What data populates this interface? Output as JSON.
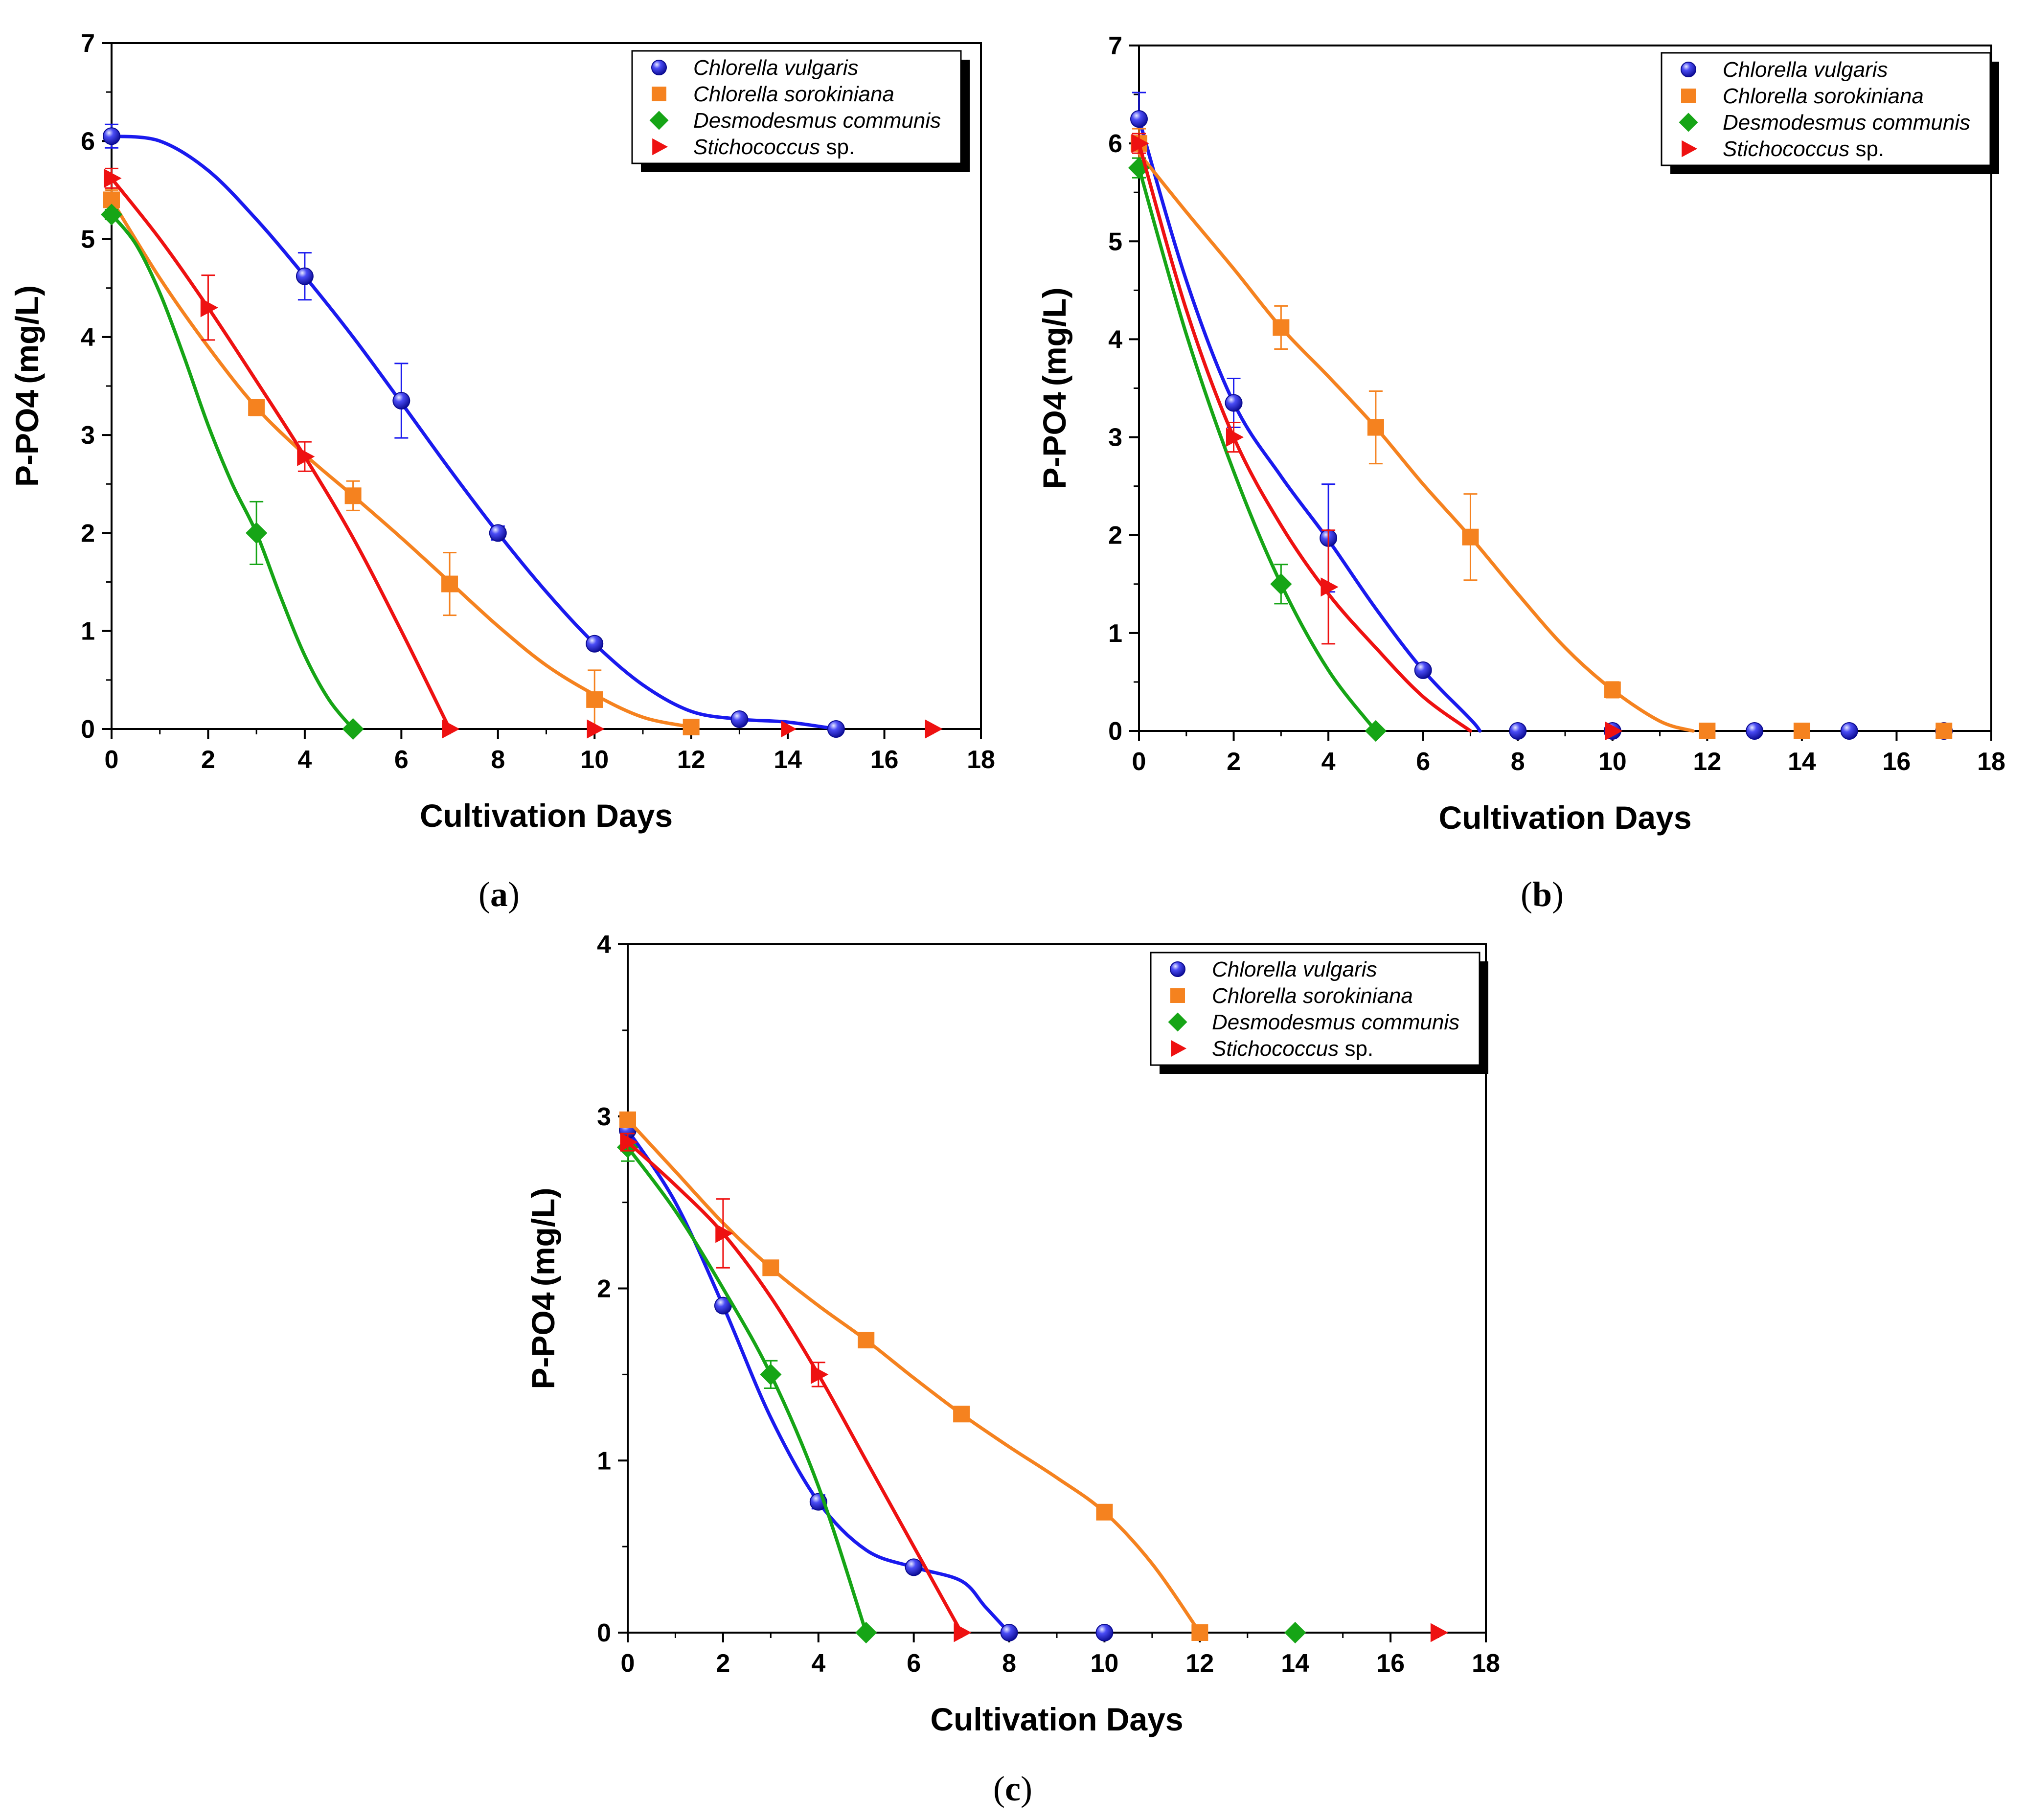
{
  "chart_data": [
    {
      "type": "scatter",
      "panel": "a",
      "xlabel": "Cultivation Days",
      "ylabel": "P-PO4 (mg/L)",
      "xlim": [
        0,
        18
      ],
      "ylim": [
        0,
        7
      ],
      "xticks": [
        0,
        2,
        4,
        6,
        8,
        10,
        12,
        14,
        16,
        18
      ],
      "yticks": [
        0,
        1,
        2,
        3,
        4,
        5,
        6,
        7
      ],
      "legend_position": "top-right",
      "series": [
        {
          "name": "Chlorella vulgaris",
          "name_italic": "Chlorella vulgaris",
          "name_suffix": "",
          "color": "#1a1aee",
          "marker": "sphere",
          "x": [
            0,
            4,
            6,
            8,
            10,
            13,
            15
          ],
          "y": [
            6.05,
            4.62,
            3.35,
            2.0,
            0.87,
            0.1,
            0.0
          ],
          "err": [
            0.12,
            0.24,
            0.38,
            0.07,
            0.04,
            0.02,
            0.0
          ],
          "curve": [
            [
              0,
              6.05
            ],
            [
              1,
              6.0
            ],
            [
              2,
              5.7
            ],
            [
              3,
              5.2
            ],
            [
              4,
              4.62
            ],
            [
              5,
              4.0
            ],
            [
              6,
              3.33
            ],
            [
              7,
              2.65
            ],
            [
              8,
              2.0
            ],
            [
              9,
              1.4
            ],
            [
              10,
              0.87
            ],
            [
              11,
              0.45
            ],
            [
              12,
              0.18
            ],
            [
              13,
              0.1
            ],
            [
              14,
              0.07
            ],
            [
              15,
              0.0
            ]
          ]
        },
        {
          "name": "Chlorella sorokiniana",
          "name_italic": "Chlorella sorokiniana",
          "name_suffix": "",
          "color": "#f5821f",
          "marker": "square",
          "x": [
            0,
            3,
            5,
            7,
            10,
            12
          ],
          "y": [
            5.4,
            3.28,
            2.38,
            1.48,
            0.3,
            0.02
          ],
          "err": [
            0.1,
            0.08,
            0.15,
            0.32,
            0.3,
            0.02
          ],
          "curve": [
            [
              0,
              5.4
            ],
            [
              1,
              4.6
            ],
            [
              2,
              3.9
            ],
            [
              3,
              3.28
            ],
            [
              4,
              2.8
            ],
            [
              5,
              2.38
            ],
            [
              6,
              1.95
            ],
            [
              7,
              1.5
            ],
            [
              8,
              1.05
            ],
            [
              9,
              0.65
            ],
            [
              10,
              0.35
            ],
            [
              11,
              0.12
            ],
            [
              12,
              0.02
            ]
          ]
        },
        {
          "name": "Desmodesmus communis",
          "name_italic": "Desmodesmus communis",
          "name_suffix": "",
          "color": "#16a516",
          "marker": "diamond",
          "x": [
            0,
            3,
            5
          ],
          "y": [
            5.25,
            2.0,
            0.0
          ],
          "err": [
            0.05,
            0.32,
            0.0
          ],
          "curve": [
            [
              0,
              5.25
            ],
            [
              0.5,
              4.95
            ],
            [
              1,
              4.45
            ],
            [
              1.5,
              3.8
            ],
            [
              2,
              3.1
            ],
            [
              2.5,
              2.5
            ],
            [
              3,
              2.0
            ],
            [
              3.5,
              1.35
            ],
            [
              4,
              0.75
            ],
            [
              4.5,
              0.3
            ],
            [
              5,
              0.0
            ]
          ]
        },
        {
          "name": "Stichococcus sp.",
          "name_italic": "Stichococcus",
          "name_suffix": " sp.",
          "color": "#ee1111",
          "marker": "triangle",
          "x": [
            0,
            2,
            4,
            7,
            10,
            17
          ],
          "y": [
            5.62,
            4.3,
            2.78,
            0.0,
            0.0,
            0.0
          ],
          "err": [
            0.1,
            0.33,
            0.15,
            0.0,
            0.0,
            0.0
          ],
          "curve": [
            [
              0,
              5.62
            ],
            [
              1,
              5.0
            ],
            [
              2,
              4.3
            ],
            [
              3,
              3.55
            ],
            [
              4,
              2.78
            ],
            [
              5,
              1.95
            ],
            [
              6,
              1.0
            ],
            [
              7,
              0.0
            ]
          ]
        }
      ],
      "extra_zero_points": [
        [
          14,
          0.0
        ],
        [
          17,
          0.0
        ]
      ]
    },
    {
      "type": "scatter",
      "panel": "b",
      "xlabel": "Cultivation Days",
      "ylabel": "P-PO4 (mg/L)",
      "xlim": [
        0,
        18
      ],
      "ylim": [
        0,
        7
      ],
      "xticks": [
        0,
        2,
        4,
        6,
        8,
        10,
        12,
        14,
        16,
        18
      ],
      "yticks": [
        0,
        1,
        2,
        3,
        4,
        5,
        6,
        7
      ],
      "legend_position": "top-right",
      "series": [
        {
          "name": "Chlorella vulgaris",
          "name_italic": "Chlorella vulgaris",
          "name_suffix": "",
          "color": "#1a1aee",
          "marker": "sphere",
          "x": [
            0,
            2,
            4,
            6,
            8,
            10,
            13,
            15,
            17
          ],
          "y": [
            6.25,
            3.35,
            1.97,
            0.62,
            0.0,
            0.0,
            0.0,
            0.0,
            0.0
          ],
          "err": [
            0.27,
            0.25,
            0.55,
            0.03,
            0.0,
            0.0,
            0.0,
            0.0,
            0.0
          ],
          "curve": [
            [
              0,
              6.25
            ],
            [
              1,
              4.6
            ],
            [
              2,
              3.35
            ],
            [
              3,
              2.6
            ],
            [
              4,
              1.95
            ],
            [
              5,
              1.25
            ],
            [
              6,
              0.62
            ],
            [
              7,
              0.12
            ],
            [
              7.2,
              0.0
            ]
          ]
        },
        {
          "name": "Chlorella sorokiniana",
          "name_italic": "Chlorella sorokiniana",
          "name_suffix": "",
          "color": "#f5821f",
          "marker": "square",
          "x": [
            0,
            3,
            5,
            7,
            10,
            12,
            14,
            17
          ],
          "y": [
            6.0,
            4.12,
            3.1,
            1.98,
            0.42,
            0.0,
            0.0,
            0.0
          ],
          "err": [
            0.15,
            0.22,
            0.37,
            0.44,
            0.08,
            0.0,
            0.0,
            0.0
          ],
          "curve": [
            [
              0,
              5.9
            ],
            [
              1,
              5.3
            ],
            [
              2,
              4.72
            ],
            [
              3,
              4.12
            ],
            [
              4,
              3.62
            ],
            [
              5,
              3.1
            ],
            [
              6,
              2.52
            ],
            [
              7,
              1.98
            ],
            [
              8,
              1.4
            ],
            [
              9,
              0.85
            ],
            [
              10,
              0.42
            ],
            [
              11,
              0.1
            ],
            [
              11.7,
              0.0
            ]
          ]
        },
        {
          "name": "Desmodesmus communis",
          "name_italic": "Desmodesmus communis",
          "name_suffix": "",
          "color": "#16a516",
          "marker": "diamond",
          "x": [
            0,
            3,
            5
          ],
          "y": [
            5.75,
            1.5,
            0.0
          ],
          "err": [
            0.1,
            0.2,
            0.0
          ],
          "curve": [
            [
              0,
              5.75
            ],
            [
              1,
              4.05
            ],
            [
              2,
              2.65
            ],
            [
              3,
              1.5
            ],
            [
              4,
              0.62
            ],
            [
              5,
              0.0
            ]
          ]
        },
        {
          "name": "Stichococcus sp.",
          "name_italic": "Stichococcus",
          "name_suffix": " sp.",
          "color": "#ee1111",
          "marker": "triangle",
          "x": [
            0,
            2,
            4,
            10
          ],
          "y": [
            6.0,
            3.0,
            1.47,
            0.0
          ],
          "err": [
            0.1,
            0.15,
            0.58,
            0.0
          ],
          "curve": [
            [
              0,
              6.0
            ],
            [
              1,
              4.3
            ],
            [
              2,
              3.0
            ],
            [
              3,
              2.1
            ],
            [
              4,
              1.4
            ],
            [
              5,
              0.85
            ],
            [
              6,
              0.35
            ],
            [
              7,
              0.0
            ]
          ]
        }
      ],
      "extra_zero_points": []
    },
    {
      "type": "scatter",
      "panel": "c",
      "xlabel": "Cultivation Days",
      "ylabel": "P-PO4 (mg/L)",
      "xlim": [
        0,
        18
      ],
      "ylim": [
        0,
        4
      ],
      "xticks": [
        0,
        2,
        4,
        6,
        8,
        10,
        12,
        14,
        16,
        18
      ],
      "yticks": [
        0,
        1,
        2,
        3,
        4
      ],
      "legend_position": "top-right",
      "series": [
        {
          "name": "Chlorella vulgaris",
          "name_italic": "Chlorella vulgaris",
          "name_suffix": "",
          "color": "#1a1aee",
          "marker": "sphere",
          "x": [
            0,
            2,
            4,
            6,
            8,
            10
          ],
          "y": [
            2.92,
            1.9,
            0.76,
            0.38,
            0.0,
            0.0
          ],
          "err": [
            0.05,
            0.03,
            0.04,
            0.02,
            0.0,
            0.0
          ],
          "curve": [
            [
              0,
              2.92
            ],
            [
              1,
              2.5
            ],
            [
              2,
              1.9
            ],
            [
              3,
              1.25
            ],
            [
              4,
              0.76
            ],
            [
              5,
              0.48
            ],
            [
              6,
              0.38
            ],
            [
              7,
              0.3
            ],
            [
              7.5,
              0.15
            ],
            [
              8,
              0.0
            ]
          ]
        },
        {
          "name": "Chlorella sorokiniana",
          "name_italic": "Chlorella sorokiniana",
          "name_suffix": "",
          "color": "#f5821f",
          "marker": "square",
          "x": [
            0,
            3,
            5,
            7,
            10,
            12
          ],
          "y": [
            2.98,
            2.12,
            1.7,
            1.27,
            0.7,
            0.0
          ],
          "err": [
            0.03,
            0.02,
            0.02,
            0.04,
            0.02,
            0.0
          ],
          "curve": [
            [
              0,
              2.98
            ],
            [
              1,
              2.68
            ],
            [
              2,
              2.38
            ],
            [
              3,
              2.12
            ],
            [
              4,
              1.9
            ],
            [
              5,
              1.7
            ],
            [
              6,
              1.48
            ],
            [
              7,
              1.27
            ],
            [
              8,
              1.08
            ],
            [
              9,
              0.9
            ],
            [
              10,
              0.7
            ],
            [
              11,
              0.4
            ],
            [
              12,
              0.0
            ]
          ]
        },
        {
          "name": "Desmodesmus communis",
          "name_italic": "Desmodesmus communis",
          "name_suffix": "",
          "color": "#16a516",
          "marker": "diamond",
          "x": [
            0,
            3,
            5,
            14
          ],
          "y": [
            2.82,
            1.5,
            0.0,
            0.0
          ],
          "err": [
            0.08,
            0.08,
            0.0,
            0.0
          ],
          "curve": [
            [
              0,
              2.82
            ],
            [
              1,
              2.45
            ],
            [
              2,
              2.0
            ],
            [
              3,
              1.5
            ],
            [
              4,
              0.85
            ],
            [
              5,
              0.0
            ]
          ]
        },
        {
          "name": "Stichococcus sp.",
          "name_italic": "Stichococcus",
          "name_suffix": " sp.",
          "color": "#ee1111",
          "marker": "triangle",
          "x": [
            0,
            2,
            4,
            7,
            17
          ],
          "y": [
            2.85,
            2.32,
            1.5,
            0.0,
            0.0
          ],
          "err": [
            0.05,
            0.2,
            0.07,
            0.0,
            0.0
          ],
          "curve": [
            [
              0,
              2.85
            ],
            [
              1,
              2.6
            ],
            [
              2,
              2.32
            ],
            [
              3,
              1.95
            ],
            [
              4,
              1.5
            ],
            [
              5,
              1.0
            ],
            [
              6,
              0.5
            ],
            [
              7,
              0.0
            ]
          ]
        }
      ],
      "extra_zero_points": []
    }
  ],
  "panel_labels": [
    "(a)",
    "(b)",
    "(c)"
  ],
  "panel_letters": [
    "a",
    "b",
    "c"
  ]
}
